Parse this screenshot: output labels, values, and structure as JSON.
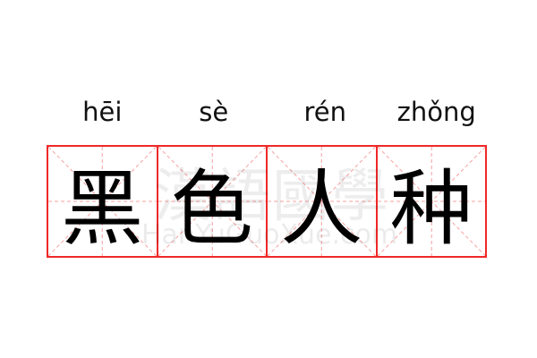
{
  "pinyin": [
    "hēi",
    "sè",
    "rén",
    "zhǒng"
  ],
  "characters": [
    "黑",
    "色",
    "人",
    "种"
  ],
  "watermark": {
    "chinese": "漢語國學",
    "latin": "HanYuGuoXue.com"
  },
  "colors": {
    "border": "#f02828",
    "guide": "#f7a0a0"
  }
}
